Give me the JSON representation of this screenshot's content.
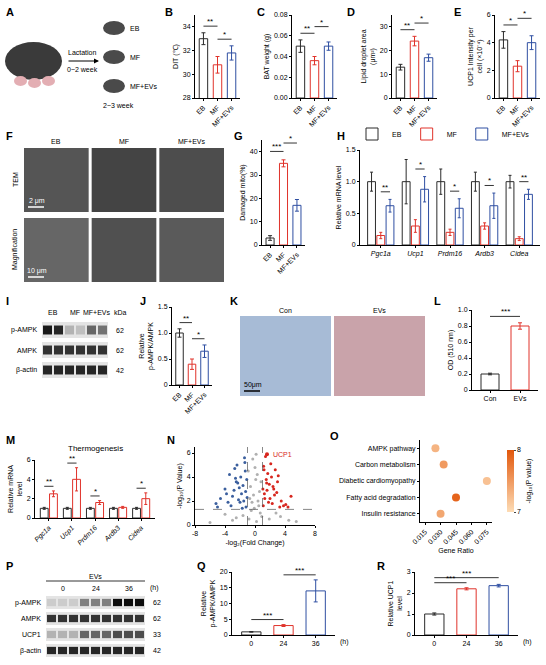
{
  "chart_data": [
    {
      "panel": "B",
      "type": "bar",
      "categories": [
        "EB",
        "MF",
        "MF+EVs"
      ],
      "values": [
        33.0,
        30.8,
        31.8
      ],
      "errors": [
        0.5,
        0.7,
        0.6
      ],
      "colors": [
        "#2b2b2b",
        "#e0332b",
        "#2f4fa2"
      ],
      "ylabel": "DIT (℃)",
      "ylim": [
        28,
        35
      ],
      "yticks": [
        28,
        30,
        32,
        34
      ],
      "annotations": [
        {
          "from": 0,
          "to": 1,
          "text": "**"
        },
        {
          "from": 1,
          "to": 2,
          "text": "*"
        }
      ]
    },
    {
      "panel": "C",
      "type": "bar",
      "categories": [
        "EB",
        "MF",
        "MF+EVs"
      ],
      "values": [
        0.05,
        0.036,
        0.05
      ],
      "errors": [
        0.006,
        0.004,
        0.004
      ],
      "colors": [
        "#2b2b2b",
        "#e0332b",
        "#2f4fa2"
      ],
      "ylabel": "BAT weight (g)",
      "ylim": [
        0,
        0.08
      ],
      "yticks": [
        {
          "value": 0,
          "label": "0.00"
        },
        0.02,
        0.04,
        0.06,
        0.08
      ],
      "annotations": [
        {
          "from": 0,
          "to": 1,
          "text": "**"
        },
        {
          "from": 1,
          "to": 2,
          "text": "*"
        }
      ]
    },
    {
      "panel": "D",
      "type": "bar",
      "categories": [
        "EB",
        "MF",
        "MF+EVs"
      ],
      "values": [
        13,
        24,
        17
      ],
      "errors": [
        1.2,
        2,
        1.5
      ],
      "colors": [
        "#2b2b2b",
        "#e0332b",
        "#2f4fa2"
      ],
      "ylabel": "Lipid droplet area (μm²)",
      "ylim": [
        0,
        35
      ],
      "yticks": [
        0,
        10,
        20,
        30
      ],
      "annotations": [
        {
          "from": 0,
          "to": 1,
          "text": "**"
        },
        {
          "from": 1,
          "to": 2,
          "text": "*"
        }
      ]
    },
    {
      "panel": "E",
      "type": "bar",
      "categories": [
        "EB",
        "MF",
        "MF+EVs"
      ],
      "values": [
        4.2,
        2.3,
        4.0
      ],
      "errors": [
        0.6,
        0.4,
        0.5
      ],
      "colors": [
        "#2b2b2b",
        "#e0332b",
        "#2f4fa2"
      ],
      "ylabel": "UCP1 Intensity per cell (×10⁻⁴)",
      "ylim": [
        0,
        6
      ],
      "yticks": [
        0,
        2,
        4,
        6
      ],
      "annotations": [
        {
          "from": 0,
          "to": 1,
          "text": "*"
        },
        {
          "from": 1,
          "to": 2,
          "text": "*"
        }
      ]
    },
    {
      "panel": "G",
      "type": "bar",
      "categories": [
        "EB",
        "MF",
        "MF+EVs"
      ],
      "values": [
        3,
        35,
        17
      ],
      "errors": [
        1,
        1.5,
        2.5
      ],
      "colors": [
        "#2b2b2b",
        "#e0332b",
        "#2f4fa2"
      ],
      "ylabel": "Damaged mito(%)",
      "ylim": [
        0,
        45
      ],
      "yticks": [
        0,
        10,
        20,
        30,
        40
      ],
      "annotations": [
        {
          "from": 0,
          "to": 1,
          "text": "***"
        },
        {
          "from": 1,
          "to": 2,
          "text": "*"
        }
      ]
    },
    {
      "panel": "H",
      "type": "bar",
      "categories": [
        "Pgc1a",
        "Ucp1",
        "Prdm16",
        "Ardb3",
        "Cidea"
      ],
      "series": [
        {
          "name": "EB",
          "color": "#2b2b2b",
          "values": [
            1,
            1,
            1,
            1,
            1
          ],
          "errors": [
            0.15,
            0.35,
            0.2,
            0.15,
            0.1
          ]
        },
        {
          "name": "MF",
          "color": "#e0332b",
          "values": [
            0.15,
            0.3,
            0.2,
            0.3,
            0.1
          ],
          "errors": [
            0.05,
            0.1,
            0.05,
            0.05,
            0.03
          ]
        },
        {
          "name": "MF+EVs",
          "color": "#2f4fa2",
          "values": [
            0.62,
            0.88,
            0.58,
            0.62,
            0.8
          ],
          "errors": [
            0.1,
            0.2,
            0.15,
            0.2,
            0.08
          ]
        }
      ],
      "legend": "top",
      "ylabel": "Relative mRNA level",
      "ylim": [
        0,
        1.5
      ],
      "yticks": [
        0,
        0.5,
        {
          "value": 1,
          "label": "1.0"
        },
        1.5
      ],
      "annotations": [
        {
          "category": 0,
          "from": 1,
          "to": 2,
          "text": "**"
        },
        {
          "category": 1,
          "from": 1,
          "to": 2,
          "text": "*"
        },
        {
          "category": 2,
          "from": 1,
          "to": 2,
          "text": "*"
        },
        {
          "category": 3,
          "from": 1,
          "to": 2,
          "text": "*"
        },
        {
          "category": 4,
          "from": 1,
          "to": 2,
          "text": "**"
        }
      ]
    },
    {
      "panel": "J",
      "type": "bar",
      "categories": [
        "EB",
        "MF",
        "MF+EVs"
      ],
      "values": [
        1.0,
        0.4,
        0.65
      ],
      "errors": [
        0.08,
        0.1,
        0.12
      ],
      "colors": [
        "#2b2b2b",
        "#e0332b",
        "#2f4fa2"
      ],
      "ylabel": "Relative p-AMPK/AMPK",
      "ylim": [
        0,
        1.5
      ],
      "yticks": [
        0,
        0.5,
        {
          "value": 1,
          "label": "1.0"
        },
        1.5
      ],
      "annotations": [
        {
          "from": 0,
          "to": 1,
          "text": "**"
        },
        {
          "from": 1,
          "to": 2,
          "text": "*"
        }
      ]
    },
    {
      "panel": "L",
      "type": "bar",
      "categories": [
        "Con",
        "EVs"
      ],
      "values": [
        0.2,
        0.8
      ],
      "errors": [
        0.01,
        0.04
      ],
      "colors": [
        "#2b2b2b",
        "#e0332b"
      ],
      "ylabel": "OD (510 nm)",
      "ylim": [
        0,
        1
      ],
      "yticks": [
        0,
        0.2,
        0.4,
        0.6,
        0.8,
        {
          "value": 1,
          "label": "1.0"
        }
      ],
      "annotations": [
        {
          "from": 0,
          "to": 1,
          "text": "***"
        }
      ]
    },
    {
      "panel": "M",
      "type": "bar",
      "title": "Thermogenesis",
      "categories": [
        "Pgc1a",
        "Ucp1",
        "Prdm16",
        "Ardb3",
        "Cidea"
      ],
      "series": [
        {
          "color": "#2b2b2b",
          "values": [
            1,
            1,
            1,
            1,
            1
          ],
          "errors": [
            0.1,
            0.1,
            0.1,
            0.1,
            0.1
          ]
        },
        {
          "color": "#e0332b",
          "values": [
            2.5,
            4.0,
            1.6,
            1.1,
            2.0
          ],
          "errors": [
            0.3,
            1.2,
            0.2,
            0.1,
            0.6
          ]
        }
      ],
      "ylabel": "Relative mRNA level",
      "ylim": [
        0,
        6
      ],
      "yticks": [
        0,
        2,
        4,
        6
      ],
      "annotations": [
        {
          "category": 0,
          "from": 0,
          "to": 1,
          "text": "**"
        },
        {
          "category": 1,
          "from": 0,
          "to": 1,
          "text": "**"
        },
        {
          "category": 2,
          "from": 0,
          "to": 1,
          "text": "*"
        },
        {
          "category": 4,
          "from": 0,
          "to": 1,
          "text": "*"
        }
      ]
    },
    {
      "panel": "N",
      "type": "scatter",
      "xlabel": "-log₂(Fold Change)",
      "ylabel": "-log₁₀(P Value)",
      "xlim": [
        -8,
        8
      ],
      "xticks": [
        -8,
        -4,
        0,
        4,
        8
      ],
      "ylim": [
        0,
        6.5
      ],
      "yticks": [
        0,
        2,
        4,
        6
      ],
      "cutoffs": {
        "x": [
          -1,
          1
        ],
        "y": 1.3
      },
      "series": [
        {
          "color": "#3b5f9e",
          "x": [
            -1.2,
            -1.5,
            -1.8,
            -2.1,
            -2.5,
            -3,
            -3.4,
            -4,
            -4.6,
            -5.2,
            -1.3,
            -1.6,
            -2,
            -2.4,
            -2.8,
            -3.2,
            -1.1,
            -1.4,
            -1.9,
            -2.2,
            -2.7,
            -3.6,
            -1.25,
            -1.7,
            -2.3,
            -1.05,
            -1.35,
            -2.6,
            -3.8,
            -5
          ],
          "y": [
            1.5,
            2.0,
            2.6,
            3.1,
            3.6,
            2.4,
            4.2,
            3.0,
            2.2,
            1.8,
            4.5,
            3.3,
            1.9,
            5.0,
            2.9,
            1.6,
            3.8,
            5.6,
            4.0,
            2.1,
            4.7,
            1.9,
            2.8,
            1.4,
            3.5,
            2.3,
            5.2,
            3.9,
            2.6,
            1.5
          ]
        },
        {
          "color": "#d7261e",
          "x": [
            1.1,
            1.3,
            1.6,
            1.9,
            2.2,
            2.6,
            3.0,
            3.5,
            4.1,
            4.8,
            1.2,
            1.5,
            1.8,
            2.1,
            2.4,
            2.9,
            3.3,
            1.05,
            1.4,
            1.7,
            2.0,
            2.7,
            3.8,
            1.25,
            1.55,
            2.3,
            3.1,
            4.4,
            1.15,
            2.5
          ],
          "y": [
            1.6,
            2.2,
            2.9,
            3.4,
            4.0,
            2.5,
            3.6,
            2.0,
            1.7,
            2.4,
            4.6,
            3.8,
            1.9,
            5.1,
            3.2,
            2.7,
            1.5,
            3.0,
            5.7,
            4.3,
            2.2,
            4.6,
            1.6,
            2.6,
            3.5,
            1.8,
            4.1,
            1.5,
            4.9,
            3.0
          ]
        },
        {
          "color": "#b0b0b0",
          "x": [
            -0.8,
            -0.5,
            -0.2,
            0.1,
            0.4,
            0.7,
            -0.9,
            -0.3,
            0.2,
            0.6,
            -0.6,
            0,
            0.5,
            0.9,
            -0.4,
            0.3,
            -2.5,
            -4,
            2.8,
            4.5,
            -1.6,
            1.9,
            -0.7,
            0.8,
            -0.1,
            -6,
            5.5,
            -3,
            3.4,
            0.15
          ],
          "y": [
            0.5,
            1.2,
            2.5,
            3.8,
            2.0,
            1.0,
            4.5,
            5.5,
            0.3,
            2.8,
            3.2,
            4.8,
            1.6,
            0.7,
            1.9,
            4.2,
            0.6,
            0.9,
            1.0,
            0.4,
            0.8,
            0.5,
            2.2,
            3.6,
            1.4,
            0.2,
            0.3,
            0.4,
            0.7,
            5.9
          ]
        }
      ],
      "annotations": [
        {
          "x": 1.6,
          "y": 5.9,
          "text": "UCP1",
          "color": "#d7261e"
        }
      ]
    },
    {
      "panel": "O",
      "type": "dot",
      "categories": [
        "AMPK pathway",
        "Carbon metabolism",
        "Diabetic cardiomyopathy",
        "Fatty acid degradation",
        "Insulin resistance"
      ],
      "values": [
        0.025,
        0.033,
        0.075,
        0.045,
        0.03
      ],
      "color_values": [
        7.3,
        7.5,
        7.2,
        7.9,
        7.4
      ],
      "colorbar": {
        "title": "-log₁₀(P value)",
        "range": [
          7,
          8
        ],
        "ticks": [
          7,
          8
        ]
      },
      "xlabel": "Gene Ratio",
      "xlim": [
        0.01,
        0.08
      ],
      "xticks": [
        0.015,
        {
          "value": 0.03,
          "label": "0.030"
        },
        0.045,
        {
          "value": 0.06,
          "label": "0.060"
        },
        0.075
      ]
    },
    {
      "panel": "Q",
      "type": "bar",
      "categories": [
        "0",
        "24",
        "36"
      ],
      "x_unit": "(h)",
      "values": [
        1,
        3,
        14
      ],
      "errors": [
        0.1,
        0.3,
        3.5
      ],
      "colors": [
        "#2b2b2b",
        "#e0332b",
        "#2f4fa2"
      ],
      "ylabel": "Relative p-AMPK/AMPK",
      "ylim": [
        0,
        20
      ],
      "yticks": [
        0,
        5,
        10,
        15,
        20
      ],
      "annotations": [
        {
          "from": 0,
          "to": 1,
          "text": "***"
        },
        {
          "from": 1,
          "to": 2,
          "text": "***"
        }
      ]
    },
    {
      "panel": "R",
      "type": "bar",
      "categories": [
        "0",
        "24",
        "36"
      ],
      "x_unit": "(h)",
      "values": [
        1.0,
        2.2,
        2.35
      ],
      "errors": [
        0.05,
        0.05,
        0.06
      ],
      "colors": [
        "#2b2b2b",
        "#e0332b",
        "#2f4fa2"
      ],
      "ylabel": "Relative UCP1 level",
      "ylim": [
        0,
        3
      ],
      "yticks": [
        0,
        1,
        2,
        3
      ],
      "annotations": [
        {
          "from": 0,
          "to": 1,
          "text": "***"
        },
        {
          "from": 0,
          "to": 2,
          "text": "***"
        }
      ]
    }
  ],
  "image_panels": [
    {
      "panel": "A",
      "type": "schematic",
      "texts": {
        "arrow_top": "Lactation",
        "arrow_bottom": "0~2 week",
        "groups_bottom": "2~3 week"
      },
      "groups": [
        "EB",
        "MF",
        "MF+EVs"
      ]
    },
    {
      "panel": "F",
      "type": "micrographs",
      "columns": [
        "EB",
        "MF",
        "MF+EVs"
      ],
      "rows": [
        "TEM",
        "Magnification"
      ],
      "scale_bars": [
        "2 μm",
        "10 μm"
      ]
    },
    {
      "panel": "I",
      "type": "blot",
      "unit": "kDa",
      "lanes": [
        {
          "label": "EB",
          "count": 2
        },
        {
          "label": "MF",
          "count": 2
        },
        {
          "label": "MF+EVs",
          "count": 2
        }
      ],
      "rows": [
        {
          "label": "p-AMPK",
          "size": 62,
          "intensity": [
            0.9,
            0.85,
            0.3,
            0.25,
            0.6,
            0.55
          ]
        },
        {
          "label": "AMPK",
          "size": 62,
          "intensity": [
            0.8,
            0.8,
            0.8,
            0.8,
            0.8,
            0.8
          ]
        },
        {
          "label": "β-actin",
          "size": 42,
          "intensity": [
            0.85,
            0.85,
            0.85,
            0.85,
            0.85,
            0.85
          ]
        }
      ]
    },
    {
      "panel": "K",
      "type": "micrographs",
      "columns": [
        "Con",
        "EVs"
      ],
      "scale_bars": [
        "50μm"
      ]
    },
    {
      "panel": "P",
      "type": "blot",
      "header": "EVs",
      "lane_unit": "(h)",
      "lanes": [
        {
          "label": "0",
          "count": 3
        },
        {
          "label": "24",
          "count": 3
        },
        {
          "label": "36",
          "count": 3
        }
      ],
      "rows": [
        {
          "label": "p-AMPK",
          "size": 62,
          "intensity": [
            0.2,
            0.2,
            0.2,
            0.5,
            0.5,
            0.5,
            0.95,
            0.95,
            0.95
          ]
        },
        {
          "label": "AMPK",
          "size": 62,
          "intensity": [
            0.8,
            0.8,
            0.8,
            0.8,
            0.8,
            0.8,
            0.8,
            0.8,
            0.8
          ]
        },
        {
          "label": "UCP1",
          "size": 33,
          "intensity": [
            0.3,
            0.3,
            0.3,
            0.6,
            0.6,
            0.6,
            0.7,
            0.7,
            0.7
          ]
        },
        {
          "label": "β-actin",
          "size": 42,
          "intensity": [
            0.85,
            0.85,
            0.85,
            0.85,
            0.85,
            0.85,
            0.85,
            0.85,
            0.85
          ]
        }
      ]
    }
  ]
}
